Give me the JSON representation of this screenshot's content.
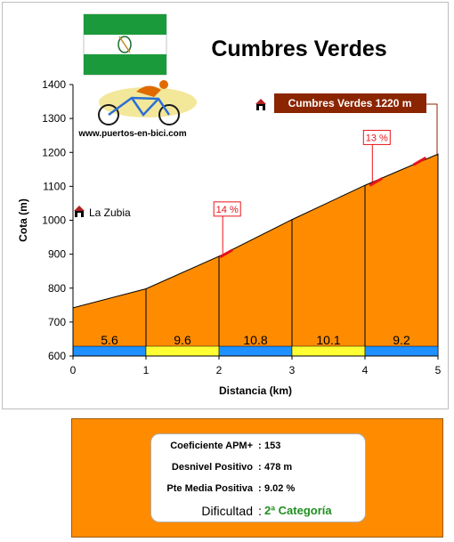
{
  "title": "Cumbres Verdes",
  "logo_url_text": "www.puertos-en-bici.com",
  "colors": {
    "fill": "#ff8c00",
    "blue_band": "#1e90ff",
    "yellow_band": "#ffff33",
    "summit_label_bg": "#8b2500",
    "grade_marker": "#e8141a",
    "flag_green": "#1b9a3b",
    "category_green": "#1f8f1f"
  },
  "chart_data": {
    "type": "area",
    "x": [
      0,
      1,
      2,
      3,
      4,
      5
    ],
    "y": [
      742,
      798,
      894,
      1002,
      1103,
      1195
    ],
    "xlim": [
      0,
      5
    ],
    "ylim": [
      600,
      1400
    ],
    "xticks": [
      "0",
      "1",
      "2",
      "3",
      "4",
      "5"
    ],
    "yticks": [
      "600",
      "700",
      "800",
      "900",
      "1000",
      "1100",
      "1200",
      "1300",
      "1400"
    ],
    "xlabel": "Distancia (km)",
    "ylabel": "Cota (m)",
    "segment_grades": [
      "5.6",
      "9.6",
      "10.8",
      "10.1",
      "9.2"
    ],
    "segment_colors": [
      "blue",
      "yellow",
      "blue",
      "yellow",
      "blue"
    ],
    "annotations": {
      "start_label": "La Zubia",
      "summit_label": "Cumbres Verdes 1220 m",
      "max_grades": [
        {
          "label": "14 %",
          "x": 2.1,
          "y": 902
        },
        {
          "label": "13 %",
          "x": 4.15,
          "y": 1113
        },
        {
          "label": "",
          "x": 4.75,
          "y": 1174
        }
      ]
    }
  },
  "stats": {
    "rows": [
      {
        "label": "Coeficiente APM+",
        "value": "153"
      },
      {
        "label": "Desnivel Positivo",
        "value": "478 m"
      },
      {
        "label": "Pte Media Positiva",
        "value": "9.02 %"
      }
    ],
    "difficulty_label": "Dificultad",
    "difficulty_value": "2ª Categoría"
  }
}
